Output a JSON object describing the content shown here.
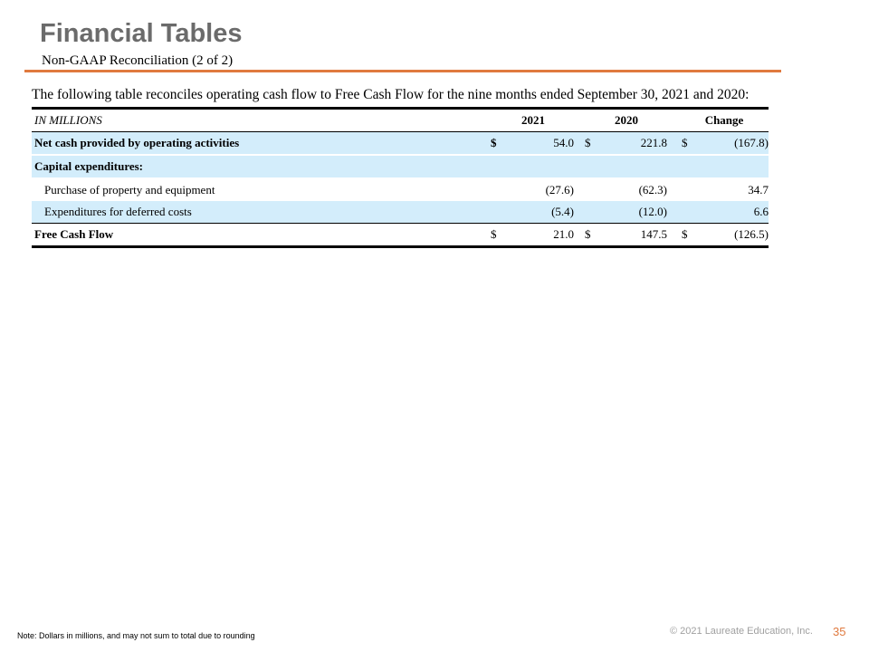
{
  "header": {
    "title": "Financial Tables",
    "subtitle": "Non-GAAP Reconciliation (2 of 2)"
  },
  "intro": "The following table reconciles operating cash flow to Free Cash Flow for the nine months ended September 30, 2021 and 2020:",
  "table": {
    "units_label": "IN MILLIONS",
    "columns": [
      "2021",
      "2020",
      "Change"
    ],
    "rows": [
      {
        "label": "Net cash provided by operating activities",
        "dollar": "$",
        "v2021": "54.0",
        "v2020": "221.8",
        "change": "(167.8)"
      },
      {
        "label": "Capital expenditures:"
      },
      {
        "label": "Purchase of property and equipment",
        "v2021": "(27.6)",
        "v2020": "(62.3)",
        "change": "34.7"
      },
      {
        "label": "Expenditures for deferred costs",
        "v2021": "(5.4)",
        "v2020": "(12.0)",
        "change": "6.6"
      },
      {
        "label": "Free Cash Flow",
        "dollar": "$",
        "v2021": "21.0",
        "v2020": "147.5",
        "change": "(126.5)"
      }
    ]
  },
  "footer": {
    "note": "Note:  Dollars in millions, and may not sum to total due to rounding",
    "copyright": "© 2021 Laureate Education, Inc.",
    "page_number": "35"
  },
  "colors": {
    "accent": "#e07a3f",
    "title_gray": "#6b6b6b",
    "row_shade": "#d3edfb"
  }
}
